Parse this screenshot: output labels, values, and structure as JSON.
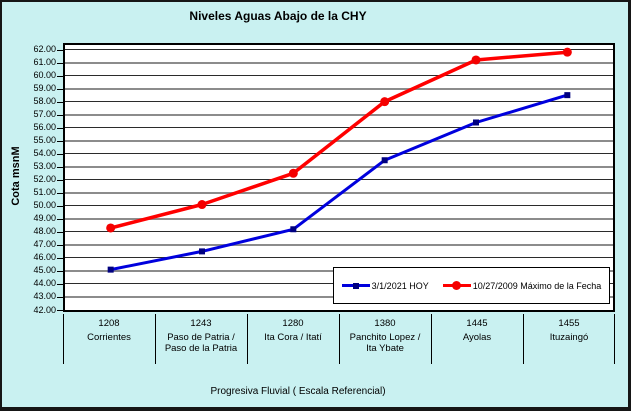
{
  "chart_data": {
    "type": "line",
    "title": "Niveles Aguas Abajo de la CHY",
    "ylabel": "Cota msnM",
    "xlabel": "Progresiva Fluvial ( Escala Referencial)",
    "ylim": [
      42,
      62
    ],
    "ytick_step": 1,
    "ytick_decimals": 2,
    "grid": "horizontal-only",
    "legend_position": "inside-bottom-right",
    "categories": [
      {
        "km": "1208",
        "label": "Corrientes"
      },
      {
        "km": "1243",
        "label": "Paso de Patria / Paso de la Patria"
      },
      {
        "km": "1280",
        "label": "Ita Cora / Itatí"
      },
      {
        "km": "1380",
        "label": "Panchito Lopez / Ita Ybate"
      },
      {
        "km": "1445",
        "label": "Ayolas"
      },
      {
        "km": "1455",
        "label": "Ituzaingó"
      }
    ],
    "series": [
      {
        "name": "3/1/2021 HOY",
        "color": "#0000dd",
        "marker": "square",
        "marker_color": "#000080",
        "values": [
          45.1,
          46.5,
          48.2,
          53.5,
          56.4,
          58.5
        ]
      },
      {
        "name": "10/27/2009 Máximo de la Fecha",
        "color": "#ff0000",
        "marker": "circle",
        "marker_color": "#f40000",
        "values": [
          48.3,
          50.1,
          52.5,
          58.0,
          61.2,
          61.8
        ]
      }
    ]
  },
  "colors": {
    "chart_background": "#c9f1f1",
    "plot_background": "#ffffff",
    "grid_major": "#2b2b2b",
    "grid_minor": "#8c8c8c",
    "frame": "#000000"
  }
}
